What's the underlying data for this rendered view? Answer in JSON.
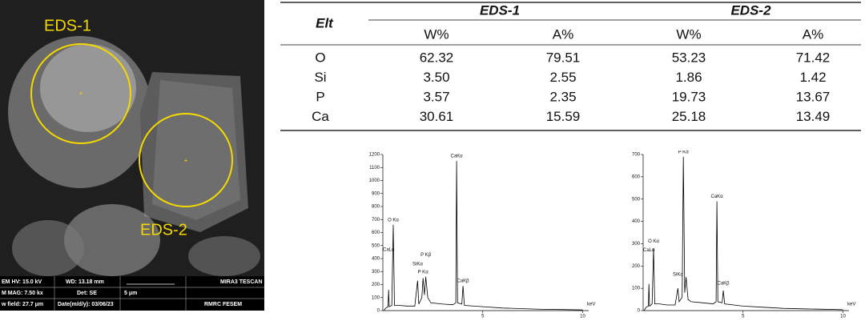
{
  "sem": {
    "regions": [
      "EDS-1",
      "EDS-2"
    ],
    "info": [
      "EM HV: 15.0 kV",
      "WD: 13.18 mm",
      "MIRA3 TESCAN",
      "M MAG: 7.50 kx",
      "Det: SE",
      "5 μm",
      "w field: 27.7 μm",
      "Date(m/d/y): 03/06/23",
      "RMRC  FESEM"
    ]
  },
  "table": {
    "corner": "Elt",
    "groups": [
      "EDS-1",
      "EDS-2"
    ],
    "columns": [
      "W%",
      "A%",
      "W%",
      "A%"
    ],
    "rows": [
      [
        "O",
        "62.32",
        "79.51",
        "53.23",
        "71.42"
      ],
      [
        "Si",
        "3.50",
        "2.55",
        "1.86",
        "1.42"
      ],
      [
        "P",
        "3.57",
        "2.35",
        "19.73",
        "13.67"
      ],
      [
        "Ca",
        "30.61",
        "15.59",
        "25.18",
        "13.49"
      ]
    ]
  },
  "chart_data": [
    {
      "type": "line",
      "x_label": "keV",
      "x": [
        0.05,
        0.15,
        0.26,
        0.29,
        0.32,
        0.45,
        0.52,
        0.58,
        0.8,
        1.2,
        1.6,
        1.74,
        1.8,
        1.95,
        2.01,
        2.08,
        2.15,
        2.25,
        2.4,
        3.0,
        3.5,
        3.65,
        3.69,
        3.74,
        3.95,
        4.01,
        4.08,
        5,
        6,
        7,
        8,
        9,
        10
      ],
      "values": [
        0,
        20,
        30,
        160,
        30,
        40,
        660,
        40,
        40,
        35,
        35,
        230,
        50,
        100,
        250,
        120,
        260,
        100,
        60,
        50,
        45,
        60,
        1150,
        60,
        50,
        190,
        40,
        30,
        20,
        15,
        10,
        8,
        5
      ],
      "color": "#000000",
      "xlim": [
        0,
        10.3
      ],
      "xticks": [
        5,
        10
      ],
      "ylim": [
        0,
        1200
      ],
      "yticks": [
        0,
        100,
        200,
        300,
        400,
        500,
        600,
        700,
        800,
        900,
        1000,
        1100,
        1200
      ],
      "annotations": [
        {
          "text": "CaKα",
          "x": 3.69,
          "y": 1150
        },
        {
          "text": "O Kα",
          "x": 0.52,
          "y": 660
        },
        {
          "text": "CaLα",
          "x": 0.29,
          "y": 430
        },
        {
          "text": "SiKα",
          "x": 1.74,
          "y": 320
        },
        {
          "text": "P Kβ",
          "x": 2.15,
          "y": 390
        },
        {
          "text": "P Kα",
          "x": 2.01,
          "y": 260
        },
        {
          "text": "CaKβ",
          "x": 4.01,
          "y": 190
        }
      ]
    },
    {
      "type": "line",
      "x_label": "keV",
      "x": [
        0.05,
        0.15,
        0.26,
        0.29,
        0.32,
        0.45,
        0.52,
        0.58,
        0.8,
        1.2,
        1.6,
        1.74,
        1.8,
        1.95,
        2.01,
        2.08,
        2.15,
        2.25,
        2.4,
        3.0,
        3.5,
        3.65,
        3.69,
        3.74,
        3.95,
        4.01,
        4.08,
        5,
        6,
        7,
        8,
        9,
        10
      ],
      "values": [
        0,
        15,
        20,
        120,
        20,
        30,
        280,
        30,
        30,
        25,
        25,
        100,
        40,
        60,
        690,
        80,
        150,
        50,
        40,
        35,
        30,
        40,
        490,
        40,
        35,
        90,
        30,
        20,
        15,
        10,
        8,
        6,
        4
      ],
      "color": "#000000",
      "xlim": [
        0,
        10.3
      ],
      "xticks": [
        5,
        10
      ],
      "ylim": [
        0,
        700
      ],
      "yticks": [
        0,
        100,
        200,
        300,
        400,
        500,
        600,
        700
      ],
      "annotations": [
        {
          "text": "P Kα",
          "x": 2.01,
          "y": 690
        },
        {
          "text": "CaKα",
          "x": 3.69,
          "y": 490
        },
        {
          "text": "O Kα",
          "x": 0.52,
          "y": 290
        },
        {
          "text": "CaLα",
          "x": 0.29,
          "y": 250
        },
        {
          "text": "SiKα",
          "x": 1.74,
          "y": 140
        },
        {
          "text": "CaKβ",
          "x": 4.01,
          "y": 100
        }
      ]
    }
  ]
}
